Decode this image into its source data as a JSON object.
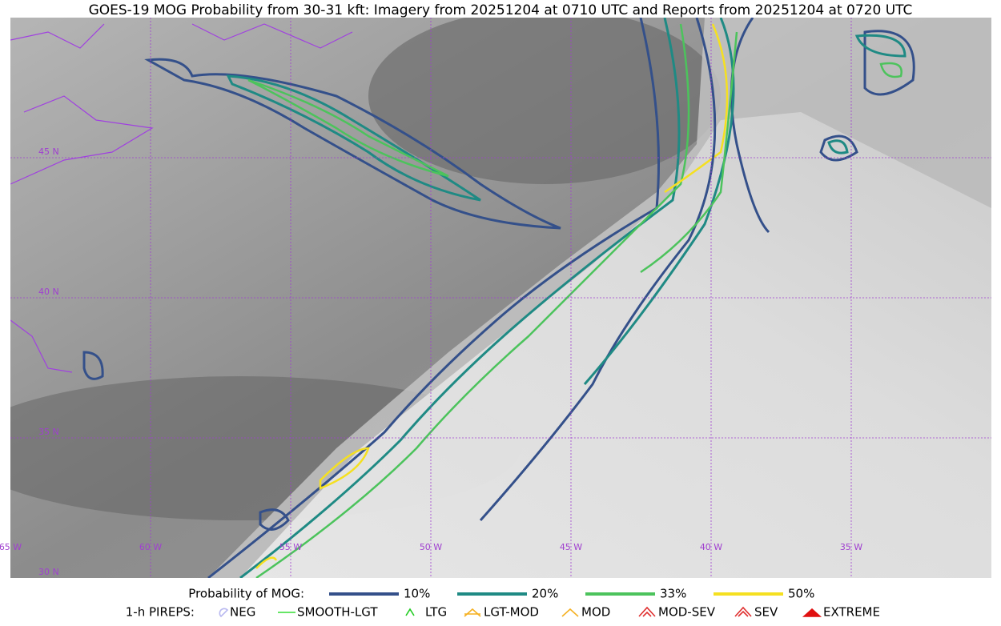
{
  "map": {
    "title": "GOES-19 MOG Probability from 30-31 kft: Imagery from 20251204 at 0710 UTC and Reports from 20251204 at 0720 UTC",
    "lon_labels": [
      "65 W",
      "60 W",
      "55 W",
      "50 W",
      "45 W",
      "40 W",
      "35 W"
    ],
    "lat_labels": [
      "45 N",
      "40 N",
      "35 N",
      "30 N"
    ],
    "probability_legend": {
      "label": "Probability of MOG:",
      "items": [
        {
          "name": "10%",
          "color": "#34508a"
        },
        {
          "name": "20%",
          "color": "#1f8a84"
        },
        {
          "name": "33%",
          "color": "#4cc35c"
        },
        {
          "name": "50%",
          "color": "#f5e020"
        }
      ]
    },
    "pirep_legend": {
      "label": "1-h PIREPS:",
      "items": [
        {
          "name": "NEG",
          "color": "#b8b8f0"
        },
        {
          "name": "SMOOTH-LGT",
          "color": "#33dd33"
        },
        {
          "name": "LTG",
          "color": "#22cc22"
        },
        {
          "name": "LGT-MOD",
          "color": "#f5b020"
        },
        {
          "name": "MOD",
          "color": "#f5b020"
        },
        {
          "name": "MOD-SEV",
          "color": "#e03030"
        },
        {
          "name": "SEV",
          "color": "#e03030"
        },
        {
          "name": "EXTREME",
          "color": "#e01010"
        }
      ]
    }
  }
}
